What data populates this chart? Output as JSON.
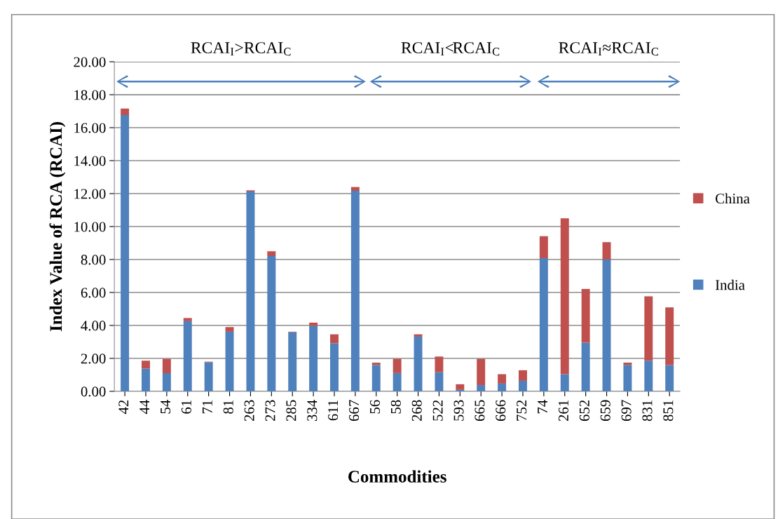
{
  "chart_data": {
    "type": "bar",
    "stacked": true,
    "xlabel": "Commodities",
    "ylabel": "Index Value of RCA (RCAI)",
    "categories": [
      "42",
      "44",
      "54",
      "61",
      "71",
      "81",
      "263",
      "273",
      "285",
      "334",
      "611",
      "667",
      "56",
      "58",
      "268",
      "522",
      "593",
      "665",
      "666",
      "752",
      "74",
      "261",
      "652",
      "659",
      "697",
      "831",
      "851"
    ],
    "series": [
      {
        "name": "India",
        "color": "#4f81bd",
        "values": [
          16.77,
          1.38,
          1.11,
          4.26,
          1.76,
          3.62,
          12.13,
          8.21,
          3.59,
          3.97,
          2.92,
          12.17,
          1.6,
          1.11,
          3.32,
          1.16,
          0.09,
          0.38,
          0.47,
          0.64,
          8.09,
          1.04,
          2.96,
          8.0,
          1.6,
          1.86,
          1.59
        ]
      },
      {
        "name": "China",
        "color": "#c0504d",
        "values": [
          0.39,
          0.48,
          0.86,
          0.19,
          0.04,
          0.28,
          0.07,
          0.29,
          0.03,
          0.2,
          0.54,
          0.23,
          0.14,
          0.86,
          0.14,
          0.95,
          0.34,
          1.59,
          0.57,
          0.64,
          1.33,
          9.46,
          3.25,
          1.05,
          0.14,
          3.91,
          3.5
        ]
      }
    ],
    "ylim": [
      0,
      20
    ],
    "yticks": [
      {
        "value": 0,
        "label": "0.00"
      },
      {
        "value": 2,
        "label": "2.00"
      },
      {
        "value": 4,
        "label": "4.00"
      },
      {
        "value": 6,
        "label": "6.00"
      },
      {
        "value": 8,
        "label": "8.00"
      },
      {
        "value": 10,
        "label": "10.00"
      },
      {
        "value": 12,
        "label": "12.00"
      },
      {
        "value": 14,
        "label": "14.00"
      },
      {
        "value": 16,
        "label": "16.00"
      },
      {
        "value": 18,
        "label": "18.00"
      },
      {
        "value": 20,
        "label": "20.00"
      }
    ],
    "annotations": [
      "RCAI$_{I}$>RCAI$_{C}$",
      "RCAI$_{I}$<RCAI$_{C}$",
      "RCAI$_{I}$≈RCAI$_{C}$"
    ],
    "grid": "y",
    "legend": "right"
  }
}
